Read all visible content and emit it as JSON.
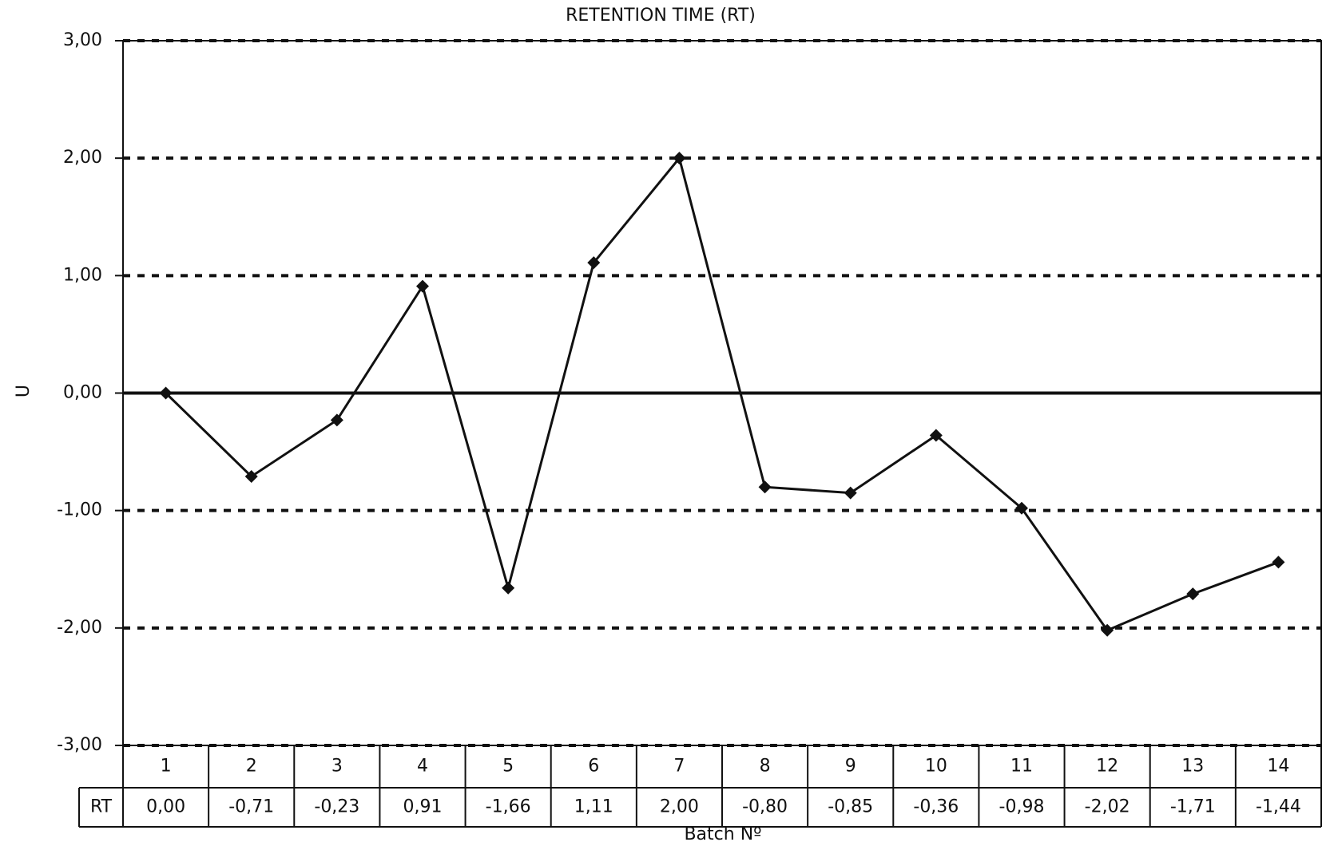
{
  "chart_data": {
    "type": "line",
    "title": "RETENTION TIME (RT)",
    "y_label": "U",
    "x_label": "Batch Nº",
    "categories": [
      "1",
      "2",
      "3",
      "4",
      "5",
      "6",
      "7",
      "8",
      "9",
      "10",
      "11",
      "12",
      "13",
      "14"
    ],
    "series": [
      {
        "name": "RT",
        "color": "#111111",
        "values": [
          0.0,
          -0.71,
          -0.23,
          0.91,
          -1.66,
          1.11,
          2.0,
          -0.8,
          -0.85,
          -0.36,
          -0.98,
          -2.02,
          -1.71,
          -1.44
        ],
        "value_labels": [
          "0,00",
          "-0,71",
          "-0,23",
          "0,91",
          "-1,66",
          "1,11",
          "2,00",
          "-0,80",
          "-0,85",
          "-0,36",
          "-0,98",
          "-2,02",
          "-1,71",
          "-1,44"
        ]
      }
    ],
    "ylim": [
      -3,
      3
    ],
    "yticks": [
      {
        "value": -3,
        "label": "-3,00"
      },
      {
        "value": -2,
        "label": "-2,00"
      },
      {
        "value": -1,
        "label": "-1,00"
      },
      {
        "value": 0,
        "label": "0,00"
      },
      {
        "value": 1,
        "label": "1,00"
      },
      {
        "value": 2,
        "label": "2,00"
      },
      {
        "value": 3,
        "label": "3,00"
      }
    ],
    "grid": true,
    "grid_style": "dashed"
  }
}
